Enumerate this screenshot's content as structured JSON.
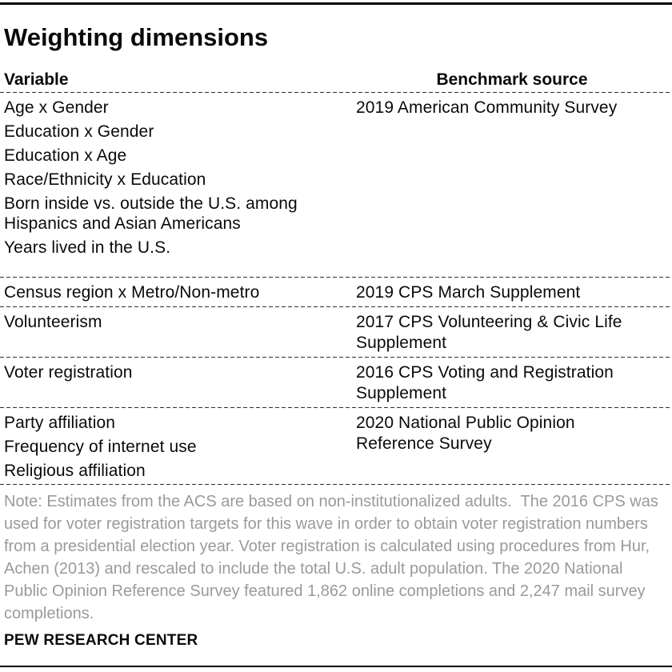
{
  "title": "Weighting dimensions",
  "table": {
    "columns": [
      "Variable",
      "Benchmark source"
    ],
    "rows": [
      {
        "variables": [
          "Age x Gender",
          "Education x Gender",
          "Education x Age",
          "Race/Ethnicity x Education",
          "Born inside vs. outside the U.S. among Hispanics and Asian Americans",
          "Years lived in the U.S."
        ],
        "source": "2019 American Community Survey"
      },
      {
        "variables": [
          "Census region x Metro/Non-metro"
        ],
        "source": "2019 CPS March Supplement"
      },
      {
        "variables": [
          "Volunteerism"
        ],
        "source": "2017 CPS Volunteering & Civic Life Supplement"
      },
      {
        "variables": [
          "Voter registration"
        ],
        "source": "2016 CPS Voting and Registration Supplement"
      },
      {
        "variables": [
          "Party affiliation",
          "Frequency of internet use",
          "Religious affiliation"
        ],
        "source": "2020 National Public Opinion Reference Survey"
      }
    ]
  },
  "note": "Note: Estimates from the ACS are based on non-institutionalized adults.  The 2016 CPS was used for voter registration targets for this wave in order to obtain voter registration numbers from a presidential election year. Voter registration is calculated using procedures from Hur, Achen (2013) and rescaled to include the total U.S. adult population. The 2020 National Public Opinion Reference Survey featured 1,862 online completions and 2,247 mail survey completions.",
  "footer": "PEW RESEARCH CENTER",
  "colors": {
    "text": "#0a0a0a",
    "note_text": "#9a9a9a",
    "rule": "#000000"
  }
}
